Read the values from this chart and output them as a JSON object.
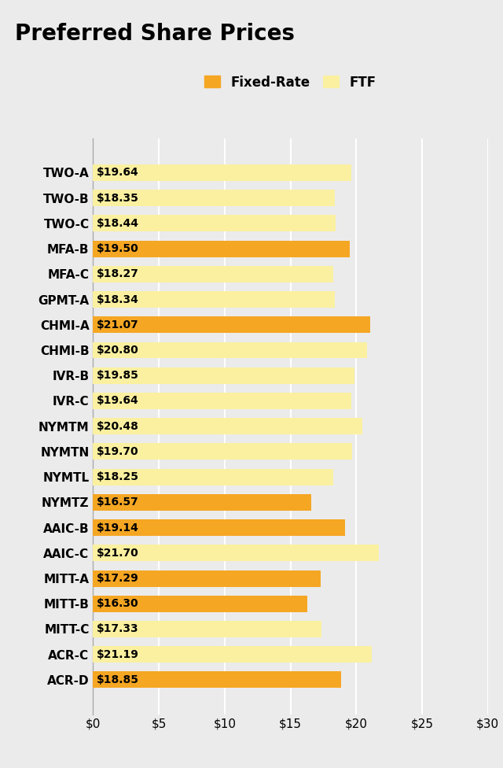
{
  "title": "Preferred Share Prices",
  "categories": [
    "TWO-A",
    "TWO-B",
    "TWO-C",
    "MFA-B",
    "MFA-C",
    "GPMT-A",
    "CHMI-A",
    "CHMI-B",
    "IVR-B",
    "IVR-C",
    "NYMTM",
    "NYMTN",
    "NYMTL",
    "NYMTZ",
    "AAIC-B",
    "AAIC-C",
    "MITT-A",
    "MITT-B",
    "MITT-C",
    "ACR-C",
    "ACR-D"
  ],
  "values": [
    19.64,
    18.35,
    18.44,
    19.5,
    18.27,
    18.34,
    21.07,
    20.8,
    19.85,
    19.64,
    20.48,
    19.7,
    18.25,
    16.57,
    19.14,
    21.7,
    17.29,
    16.3,
    17.33,
    21.19,
    18.85
  ],
  "is_fixed_rate": [
    false,
    false,
    false,
    true,
    false,
    false,
    true,
    false,
    false,
    false,
    false,
    false,
    false,
    true,
    true,
    false,
    true,
    true,
    false,
    false,
    true
  ],
  "fixed_rate_color": "#F5A623",
  "ftf_color": "#FAF0A0",
  "background_color": "#EBEBEB",
  "bar_height": 0.65,
  "xlim": [
    0,
    30
  ],
  "xticks": [
    0,
    5,
    10,
    15,
    20,
    25,
    30
  ],
  "xtick_labels": [
    "$0",
    "$5",
    "$10",
    "$15",
    "$20",
    "$25",
    "$30"
  ],
  "title_fontsize": 20,
  "label_fontsize": 11,
  "tick_fontsize": 11,
  "legend_fontsize": 12,
  "value_fontsize": 10
}
